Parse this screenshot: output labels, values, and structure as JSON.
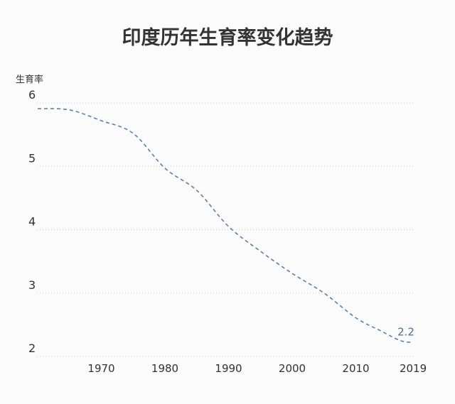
{
  "chart_data": {
    "type": "line",
    "title": "印度历年生育率变化趋势",
    "xlabel": "",
    "ylabel": "生育率",
    "xlim": [
      1960,
      2020
    ],
    "ylim": [
      2,
      6
    ],
    "yticks": [
      "2",
      "3",
      "4",
      "5",
      "6"
    ],
    "xticks": [
      "1970",
      "1980",
      "1990",
      "2000",
      "2010",
      "2019"
    ],
    "grid": true,
    "series_color": "#5b7fae",
    "series": [
      {
        "x": [
          1960,
          1965,
          1970,
          1975,
          1980,
          1985,
          1990,
          1995,
          2000,
          2005,
          2010,
          2014,
          2017,
          2019
        ],
        "values": [
          5.91,
          5.89,
          5.72,
          5.52,
          4.97,
          4.62,
          4.05,
          3.66,
          3.31,
          3.0,
          2.61,
          2.4,
          2.25,
          2.22
        ]
      }
    ],
    "data_labels": [
      {
        "x": 2019,
        "text": "2.2"
      }
    ]
  }
}
